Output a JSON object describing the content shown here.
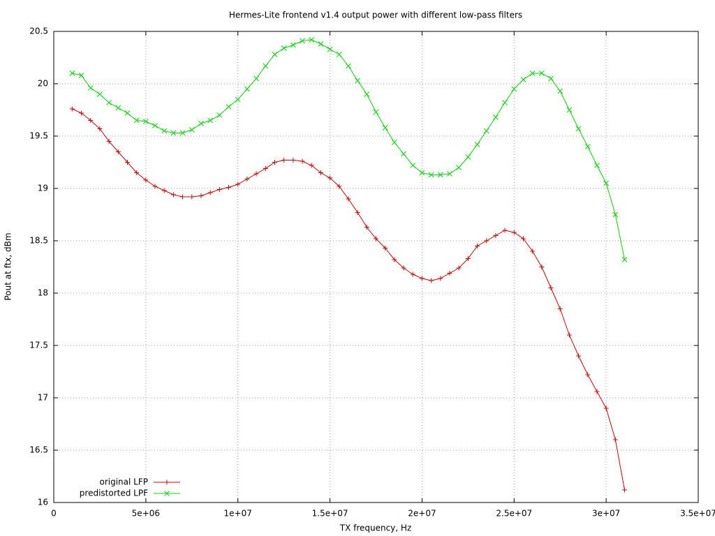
{
  "chart_data": {
    "type": "line",
    "title": "Hermes-Lite frontend v1.4 output power with different low-pass filters",
    "xlabel": "TX frequency, Hz",
    "ylabel": "Pout at ftx, dBm",
    "x": [
      1000000,
      1500000,
      2000000,
      2500000,
      3000000,
      3500000,
      4000000,
      4500000,
      5000000,
      5500000,
      6000000,
      6500000,
      7000000,
      7500000,
      8000000,
      8500000,
      9000000,
      9500000,
      10000000,
      10500000,
      11000000,
      11500000,
      12000000,
      12500000,
      13000000,
      13500000,
      14000000,
      14500000,
      15000000,
      15500000,
      16000000,
      16500000,
      17000000,
      17500000,
      18000000,
      18500000,
      19000000,
      19500000,
      20000000,
      20500000,
      21000000,
      21500000,
      22000000,
      22500000,
      23000000,
      23500000,
      24000000,
      24500000,
      25000000,
      25500000,
      26000000,
      26500000,
      27000000,
      27500000,
      28000000,
      28500000,
      29000000,
      29500000,
      30000000,
      30500000,
      31000000
    ],
    "series": [
      {
        "name": "original LFP",
        "color": "#e00000",
        "marker": "plus",
        "values": [
          19.76,
          19.72,
          19.65,
          19.57,
          19.45,
          19.35,
          19.25,
          19.15,
          19.08,
          19.02,
          18.98,
          18.94,
          18.92,
          18.92,
          18.93,
          18.96,
          18.99,
          19.01,
          19.04,
          19.09,
          19.14,
          19.19,
          19.25,
          19.27,
          19.27,
          19.26,
          19.22,
          19.15,
          19.1,
          19.02,
          18.9,
          18.77,
          18.63,
          18.52,
          18.43,
          18.32,
          18.24,
          18.18,
          18.14,
          18.12,
          18.14,
          18.19,
          18.24,
          18.33,
          18.45,
          18.5,
          18.55,
          18.6,
          18.58,
          18.52,
          18.4,
          18.25,
          18.05,
          17.85,
          17.6,
          17.4,
          17.22,
          17.06,
          16.9,
          16.6,
          16.12
        ]
      },
      {
        "name": "predistorted LPF",
        "color": "#00e000",
        "marker": "cross",
        "values": [
          20.1,
          20.08,
          19.96,
          19.9,
          19.82,
          19.77,
          19.72,
          19.65,
          19.64,
          19.6,
          19.55,
          19.53,
          19.53,
          19.56,
          19.62,
          19.65,
          19.7,
          19.78,
          19.85,
          19.95,
          20.05,
          20.17,
          20.28,
          20.34,
          20.37,
          20.41,
          20.42,
          20.38,
          20.33,
          20.28,
          20.17,
          20.03,
          19.9,
          19.73,
          19.58,
          19.44,
          19.33,
          19.22,
          19.15,
          19.13,
          19.13,
          19.14,
          19.2,
          19.3,
          19.42,
          19.55,
          19.68,
          19.82,
          19.95,
          20.04,
          20.1,
          20.1,
          20.05,
          19.93,
          19.75,
          19.57,
          19.4,
          19.22,
          19.05,
          18.75,
          18.32
        ]
      }
    ],
    "xlim": [
      0,
      35000000
    ],
    "xticks": [
      0,
      {
        "value": 5000000,
        "label": "5e+06"
      },
      {
        "value": 10000000,
        "label": "1e+07"
      },
      {
        "value": 15000000,
        "label": "1.5e+07"
      },
      {
        "value": 20000000,
        "label": "2e+07"
      },
      {
        "value": 25000000,
        "label": "2.5e+07"
      },
      {
        "value": 30000000,
        "label": "3e+07"
      },
      {
        "value": 35000000,
        "label": "3.5e+07"
      }
    ],
    "ylim": [
      16,
      20.5
    ],
    "yticks": [
      16,
      16.5,
      17,
      17.5,
      18,
      18.5,
      19,
      19.5,
      20,
      20.5
    ],
    "grid": true,
    "legend": "bottom left"
  }
}
